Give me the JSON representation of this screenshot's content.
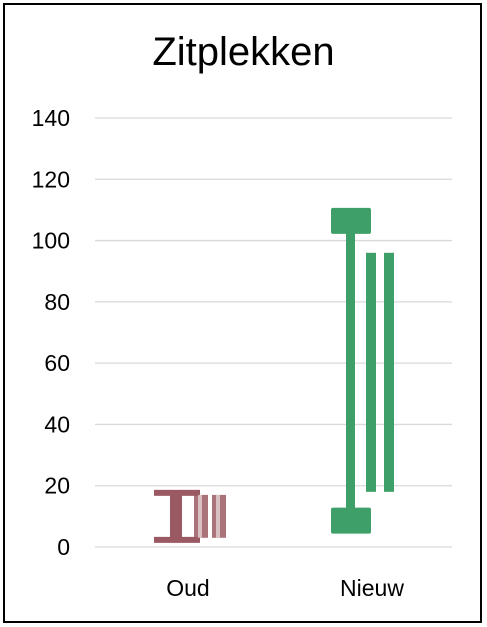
{
  "chart_data": {
    "type": "custom-range-glyphs",
    "title": "Zitplekken",
    "xlabel": "",
    "ylabel": "",
    "ylim": [
      0,
      140
    ],
    "yticks": [
      0,
      20,
      40,
      60,
      80,
      100,
      120,
      140
    ],
    "grid": true,
    "categories": [
      "Oud",
      "Nieuw"
    ],
    "glyphs": [
      {
        "category": "Oud",
        "color": "#9B5A63",
        "range": {
          "min": 2,
          "max": 18
        },
        "inner_bars": [
          {
            "min": 3,
            "max": 17
          },
          {
            "min": 3,
            "max": 17
          }
        ]
      },
      {
        "category": "Nieuw",
        "color": "#3E9F69",
        "range": {
          "min": 5,
          "max": 110
        },
        "inner_bars": [
          {
            "min": 18,
            "max": 96
          },
          {
            "min": 18,
            "max": 96
          }
        ]
      }
    ]
  }
}
